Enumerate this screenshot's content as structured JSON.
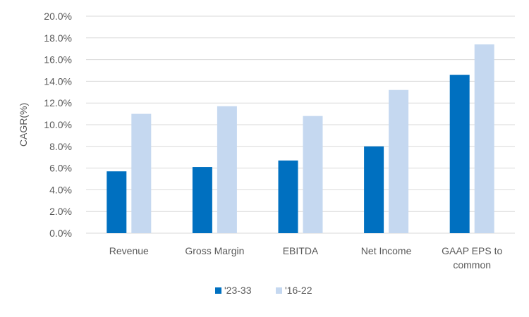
{
  "chart_data": {
    "type": "bar",
    "title": "",
    "xlabel": "",
    "ylabel": "CAGR(%)",
    "ylim": [
      0,
      20
    ],
    "y_tick_step": 2,
    "y_tick_format": "percent-1dp",
    "categories": [
      "Revenue",
      "Gross Margin",
      "EBITDA",
      "Net Income",
      "GAAP EPS to common"
    ],
    "category_lines": [
      [
        "Revenue"
      ],
      [
        "Gross Margin"
      ],
      [
        "EBITDA"
      ],
      [
        "Net Income"
      ],
      [
        "GAAP EPS to",
        "common"
      ]
    ],
    "series": [
      {
        "name": "'23-33",
        "color": "#0070C0",
        "values": [
          5.7,
          6.1,
          6.7,
          8.0,
          14.6
        ]
      },
      {
        "name": "'16-22",
        "color": "#C5D8F0",
        "values": [
          11.0,
          11.7,
          10.8,
          13.2,
          17.4
        ]
      }
    ],
    "grid": true,
    "gridline_color": "#D9D9D9",
    "legend_position": "bottom"
  }
}
